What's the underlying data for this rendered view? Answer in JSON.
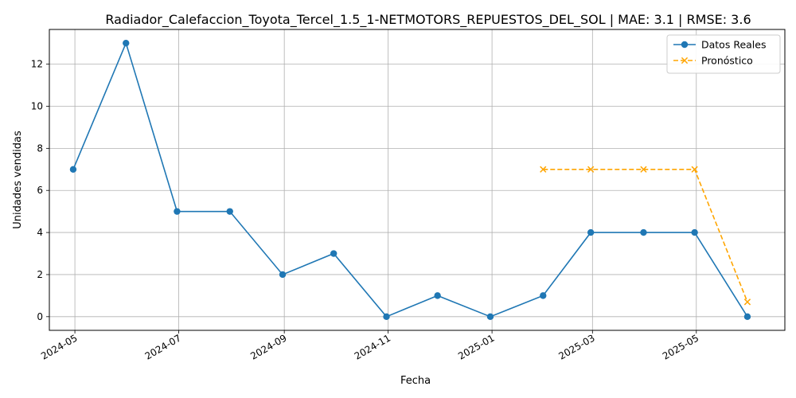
{
  "chart_data": {
    "type": "line",
    "title": "Radiador_Calefaccion_Toyota_Tercel_1.5_1-NETMOTORS_REPUESTOS_DEL_SOL | MAE: 3.1 | RMSE: 3.6",
    "xlabel": "Fecha",
    "ylabel": "Unidades vendidas",
    "grid": true,
    "legend_position": "top-right",
    "xlim": [
      "2024-04-16",
      "2025-06-22"
    ],
    "ylim": [
      -0.65,
      13.65
    ],
    "x_ticks": [
      "2024-05",
      "2024-07",
      "2024-09",
      "2024-11",
      "2025-01",
      "2025-03",
      "2025-05"
    ],
    "y_ticks": [
      0,
      2,
      4,
      6,
      8,
      10,
      12
    ],
    "series": [
      {
        "name": "Datos Reales",
        "color": "#1f77b4",
        "line_style": "solid",
        "marker": "circle",
        "x": [
          "2024-04-30",
          "2024-05-31",
          "2024-06-30",
          "2024-07-31",
          "2024-08-31",
          "2024-09-30",
          "2024-10-31",
          "2024-11-30",
          "2024-12-31",
          "2025-01-31",
          "2025-02-28",
          "2025-03-31",
          "2025-04-30",
          "2025-05-31"
        ],
        "values": [
          7,
          13,
          5,
          5,
          2,
          3,
          0,
          1,
          0,
          1,
          4,
          4,
          4,
          0
        ]
      },
      {
        "name": "Pronóstico",
        "color": "#ffa500",
        "line_style": "dashed",
        "marker": "x",
        "x": [
          "2025-01-31",
          "2025-02-28",
          "2025-03-31",
          "2025-04-30",
          "2025-05-31"
        ],
        "values": [
          7,
          7,
          7,
          7,
          0.7
        ]
      }
    ]
  }
}
